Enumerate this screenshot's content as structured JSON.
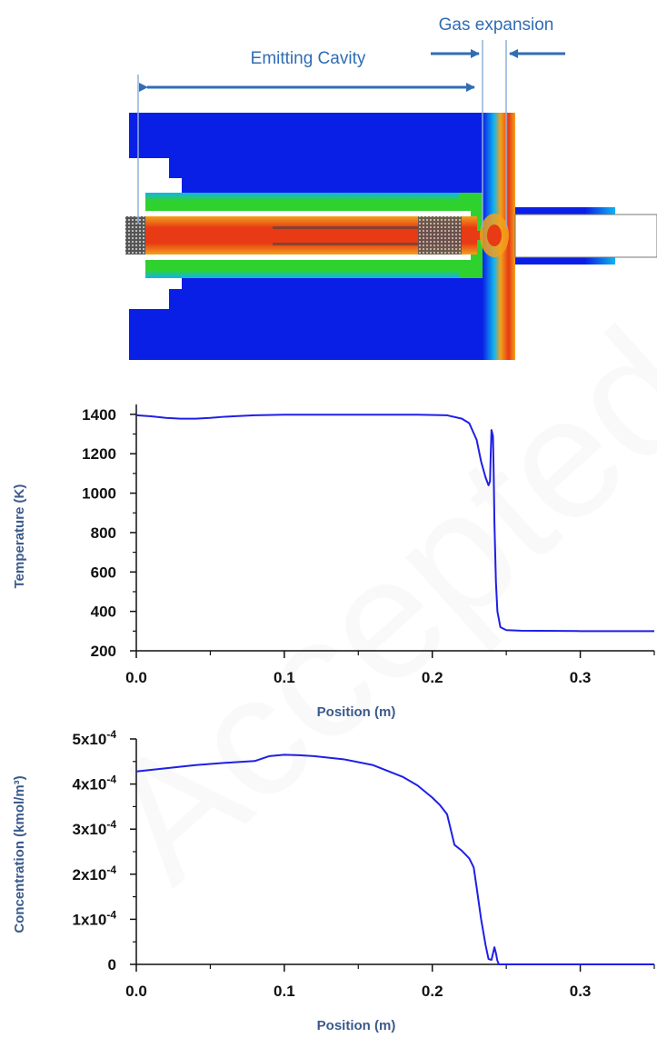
{
  "colors": {
    "curve": "#1f1fe6",
    "annotation": "#2f6db5",
    "axis_title": "#3b5a8c",
    "tick_text": "#111111",
    "sim_background": "#0a1fe6",
    "sim_hot": "#e83a14",
    "sim_warm": "#f2a11c",
    "sim_mid": "#2fd12f",
    "sim_cool": "#0fb4f0"
  },
  "watermark": {
    "text": "Accepted manuscript"
  },
  "diagram": {
    "emitting_cavity_label": "Emitting Cavity",
    "gas_expansion_label": "Gas expansion"
  },
  "chart_data": [
    {
      "type": "line",
      "xlabel": "Position (m)",
      "ylabel": "Temperature (K)",
      "xlim": [
        0.0,
        0.35
      ],
      "ylim": [
        200,
        1450
      ],
      "x_ticks": [
        0.0,
        0.1,
        0.2,
        0.3
      ],
      "x_tick_labels": [
        "0.0",
        "0.1",
        "0.2",
        "0.3"
      ],
      "y_ticks": [
        200,
        400,
        600,
        800,
        1000,
        1200,
        1400
      ],
      "y_tick_labels": [
        "200",
        "400",
        "600",
        "800",
        "1000",
        "1200",
        "1400"
      ],
      "grid": false,
      "series": [
        {
          "x": [
            0.0,
            0.01,
            0.02,
            0.03,
            0.04,
            0.05,
            0.06,
            0.08,
            0.1,
            0.13,
            0.16,
            0.19,
            0.21,
            0.22,
            0.225,
            0.23,
            0.233,
            0.236,
            0.238,
            0.239,
            0.2395,
            0.24,
            0.241,
            0.2415,
            0.242,
            0.243,
            0.244,
            0.246,
            0.25,
            0.26,
            0.3,
            0.35
          ],
          "y": [
            1395,
            1390,
            1382,
            1378,
            1378,
            1382,
            1388,
            1395,
            1398,
            1398,
            1398,
            1398,
            1395,
            1378,
            1355,
            1270,
            1160,
            1080,
            1040,
            1060,
            1200,
            1320,
            1290,
            1100,
            850,
            550,
            400,
            320,
            305,
            302,
            300,
            300
          ]
        }
      ]
    },
    {
      "type": "line",
      "xlabel": "Position (m)",
      "ylabel": "Concentration (kmol/m³)",
      "xlim": [
        0.0,
        0.35
      ],
      "ylim": [
        0,
        0.0005
      ],
      "x_ticks": [
        0.0,
        0.1,
        0.2,
        0.3
      ],
      "x_tick_labels": [
        "0.0",
        "0.1",
        "0.2",
        "0.3"
      ],
      "y_ticks": [
        0,
        0.0001,
        0.0002,
        0.0003,
        0.0004,
        0.0005
      ],
      "y_tick_labels": [
        {
          "base": "0",
          "exp": ""
        },
        {
          "base": "1x10",
          "exp": "-4"
        },
        {
          "base": "2x10",
          "exp": "-4"
        },
        {
          "base": "3x10",
          "exp": "-4"
        },
        {
          "base": "4x10",
          "exp": "-4"
        },
        {
          "base": "5x10",
          "exp": "-4"
        }
      ],
      "grid": false,
      "series": [
        {
          "x": [
            0.0,
            0.02,
            0.04,
            0.06,
            0.08,
            0.09,
            0.1,
            0.11,
            0.12,
            0.14,
            0.16,
            0.18,
            0.19,
            0.2,
            0.205,
            0.21,
            0.215,
            0.22,
            0.225,
            0.228,
            0.23,
            0.233,
            0.236,
            0.238,
            0.24,
            0.242,
            0.243,
            0.244,
            0.245,
            0.247,
            0.25,
            0.3,
            0.35
          ],
          "y": [
            0.000428,
            0.000435,
            0.000442,
            0.000447,
            0.000451,
            0.000462,
            0.000465,
            0.000464,
            0.000462,
            0.000455,
            0.000442,
            0.000416,
            0.000397,
            0.00037,
            0.000354,
            0.000333,
            0.000265,
            0.000252,
            0.000235,
            0.000215,
            0.00017,
            0.0001,
            4.3e-05,
            1.2e-05,
            1e-05,
            3.8e-05,
            2.5e-05,
            8e-06,
            0.0,
            0.0,
            0.0,
            0.0,
            0.0
          ]
        }
      ]
    }
  ]
}
